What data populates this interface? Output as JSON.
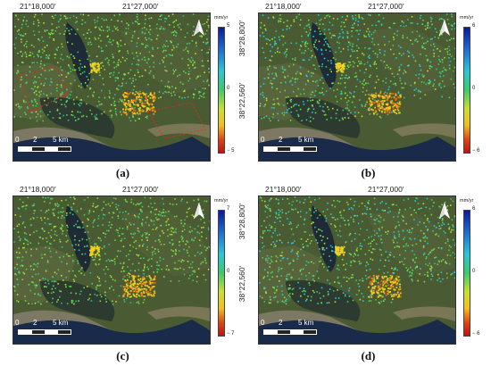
{
  "panels": [
    {
      "id": "a",
      "caption": "(a)",
      "lon_ticks": [
        "21°18,000′",
        "21°27,000′"
      ],
      "lat_ticks": [
        "38°28,800′",
        "38°22,560′"
      ],
      "unit": "mm/yr",
      "cb_max": "5",
      "cb_mid": "0",
      "cb_min": "− 5",
      "scale": [
        "0",
        "2",
        "5 km"
      ]
    },
    {
      "id": "b",
      "caption": "(b)",
      "lon_ticks": [
        "21°18,000′",
        "21°27,000′"
      ],
      "lat_ticks": [
        "38°28,800′",
        "38°22,560′"
      ],
      "unit": "mm/yr",
      "cb_max": "6",
      "cb_mid": "0",
      "cb_min": "− 6",
      "scale": [
        "0",
        "2",
        "5 km"
      ]
    },
    {
      "id": "c",
      "caption": "(c)",
      "lon_ticks": [
        "21°18,000′",
        "21°27,000′"
      ],
      "lat_ticks": [
        "38°28,800′",
        "38°22,560′"
      ],
      "unit": "mm/yr",
      "cb_max": "7",
      "cb_mid": "0",
      "cb_min": "− 7",
      "scale": [
        "0",
        "2",
        "5 km"
      ]
    },
    {
      "id": "d",
      "caption": "(d)",
      "lon_ticks": [
        "21°18,000′",
        "21°27,000′"
      ],
      "lat_ticks": [
        "38°28,800′",
        "38°22,560′"
      ],
      "unit": "mm/yr",
      "cb_max": "6",
      "cb_mid": "0",
      "cb_min": "− 6",
      "scale": [
        "0",
        "2",
        "5 km"
      ]
    }
  ],
  "colors": {
    "uplift": "#0a1a9a",
    "stable": "#3ec86a",
    "subsidence": "#c01010",
    "sea": "#1a2a4a",
    "land": "#4a5a32"
  },
  "icons": {
    "north": "north-arrow-icon"
  }
}
